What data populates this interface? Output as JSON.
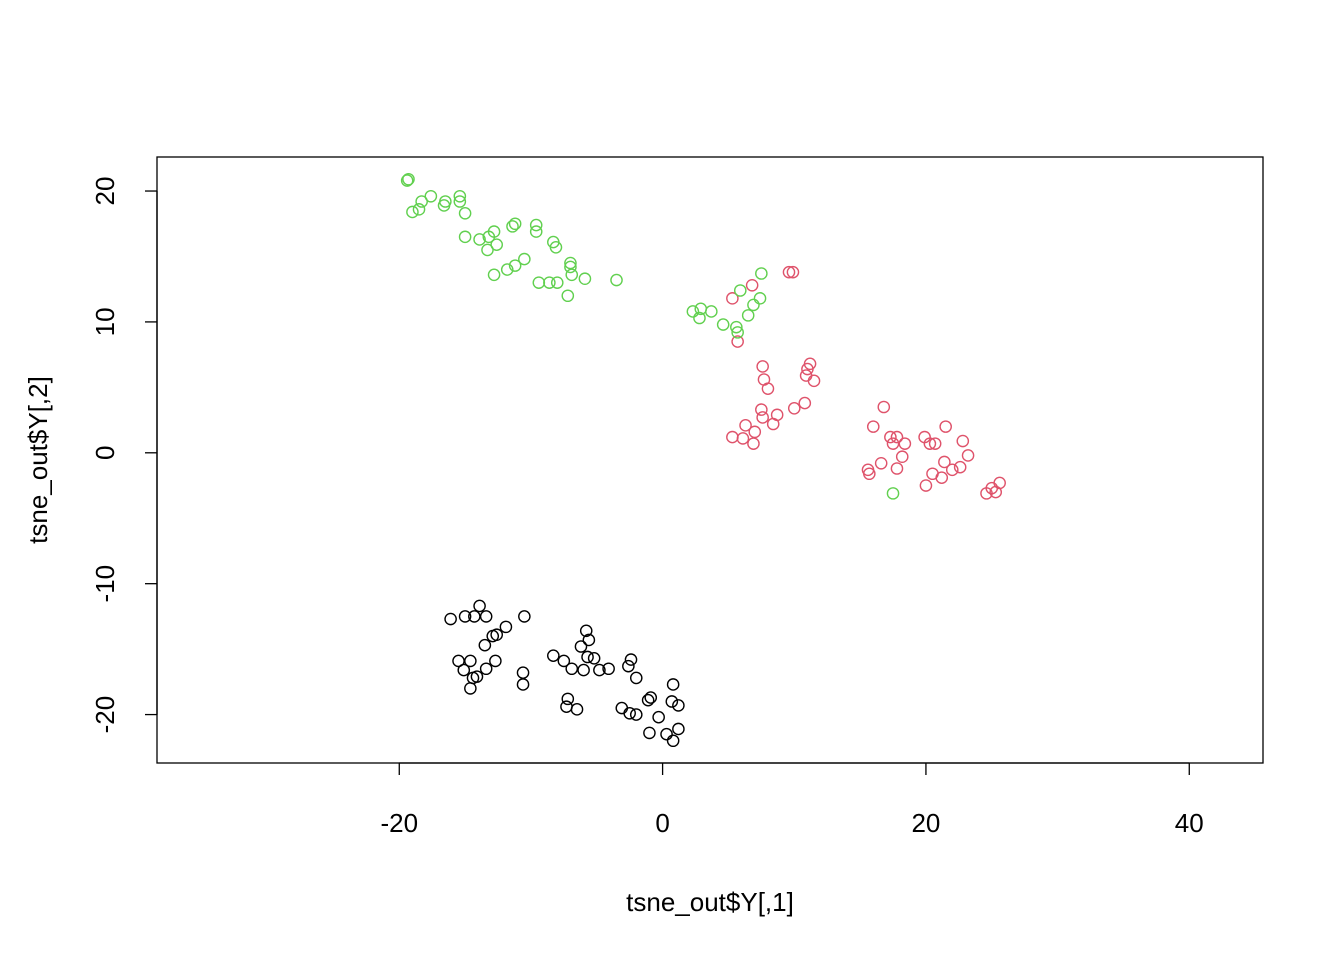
{
  "chart_data": {
    "type": "scatter",
    "title": "",
    "xlabel": "tsne_out$Y[,1]",
    "ylabel": "tsne_out$Y[,2]",
    "xlim": [
      -38.4,
      45.6
    ],
    "ylim": [
      -23.7,
      22.6
    ],
    "xticks": [
      -20,
      0,
      20,
      40
    ],
    "yticks": [
      -20,
      -10,
      0,
      10,
      20
    ],
    "grid": false,
    "legend": "none",
    "marker": "open-circle",
    "series": [
      {
        "color": "#000000",
        "points": [
          [
            -16.1,
            -12.7
          ],
          [
            -15.0,
            -12.5
          ],
          [
            -14.3,
            -12.5
          ],
          [
            -13.9,
            -11.7
          ],
          [
            -13.4,
            -12.5
          ],
          [
            -12.9,
            -14.0
          ],
          [
            -12.6,
            -13.9
          ],
          [
            -11.9,
            -13.3
          ],
          [
            -10.5,
            -12.5
          ],
          [
            -13.5,
            -14.7
          ],
          [
            -15.5,
            -15.9
          ],
          [
            -15.1,
            -16.6
          ],
          [
            -14.6,
            -15.9
          ],
          [
            -14.4,
            -17.2
          ],
          [
            -14.1,
            -17.1
          ],
          [
            -13.4,
            -16.5
          ],
          [
            -12.7,
            -15.9
          ],
          [
            -14.6,
            -18.0
          ],
          [
            -10.6,
            -16.8
          ],
          [
            -10.6,
            -17.7
          ],
          [
            -8.3,
            -15.5
          ],
          [
            -7.5,
            -15.9
          ],
          [
            -6.9,
            -16.5
          ],
          [
            -6.2,
            -14.8
          ],
          [
            -5.8,
            -13.6
          ],
          [
            -5.6,
            -14.3
          ],
          [
            -5.7,
            -15.6
          ],
          [
            -5.2,
            -15.7
          ],
          [
            -4.8,
            -16.6
          ],
          [
            -4.1,
            -16.5
          ],
          [
            -6.0,
            -16.6
          ],
          [
            -2.6,
            -16.3
          ],
          [
            -2.4,
            -15.8
          ],
          [
            -2.0,
            -17.2
          ],
          [
            -7.2,
            -18.8
          ],
          [
            -7.3,
            -19.4
          ],
          [
            -6.5,
            -19.6
          ],
          [
            -3.1,
            -19.5
          ],
          [
            -2.5,
            -19.9
          ],
          [
            -2.0,
            -20.0
          ],
          [
            -1.1,
            -18.9
          ],
          [
            -0.9,
            -18.7
          ],
          [
            0.8,
            -17.7
          ],
          [
            0.7,
            -19.0
          ],
          [
            1.2,
            -19.3
          ],
          [
            -0.3,
            -20.2
          ],
          [
            -1.0,
            -21.4
          ],
          [
            0.3,
            -21.5
          ],
          [
            0.8,
            -22.0
          ],
          [
            1.2,
            -21.1
          ]
        ]
      },
      {
        "color": "#DF536B",
        "points": [
          [
            5.3,
            11.8
          ],
          [
            6.8,
            12.8
          ],
          [
            9.6,
            13.8
          ],
          [
            9.9,
            13.8
          ],
          [
            5.7,
            8.5
          ],
          [
            7.6,
            6.6
          ],
          [
            7.7,
            5.6
          ],
          [
            8.0,
            4.9
          ],
          [
            11.0,
            6.4
          ],
          [
            11.2,
            6.8
          ],
          [
            10.9,
            5.9
          ],
          [
            11.5,
            5.5
          ],
          [
            7.5,
            3.3
          ],
          [
            7.6,
            2.7
          ],
          [
            8.7,
            2.9
          ],
          [
            10.0,
            3.4
          ],
          [
            10.8,
            3.8
          ],
          [
            8.4,
            2.2
          ],
          [
            6.3,
            2.1
          ],
          [
            7.0,
            1.6
          ],
          [
            5.3,
            1.2
          ],
          [
            6.1,
            1.1
          ],
          [
            6.9,
            0.7
          ],
          [
            16.0,
            2.0
          ],
          [
            16.8,
            3.5
          ],
          [
            17.3,
            1.2
          ],
          [
            17.5,
            0.7
          ],
          [
            17.8,
            1.2
          ],
          [
            18.4,
            0.7
          ],
          [
            18.2,
            -0.3
          ],
          [
            16.6,
            -0.8
          ],
          [
            15.6,
            -1.3
          ],
          [
            15.7,
            -1.6
          ],
          [
            17.8,
            -1.2
          ],
          [
            19.9,
            1.2
          ],
          [
            20.3,
            0.7
          ],
          [
            20.7,
            0.7
          ],
          [
            21.5,
            2.0
          ],
          [
            22.8,
            0.9
          ],
          [
            23.2,
            -0.2
          ],
          [
            21.4,
            -0.7
          ],
          [
            20.5,
            -1.6
          ],
          [
            21.2,
            -1.9
          ],
          [
            22.0,
            -1.3
          ],
          [
            22.6,
            -1.1
          ],
          [
            20.0,
            -2.5
          ],
          [
            24.6,
            -3.1
          ],
          [
            25.0,
            -2.7
          ],
          [
            25.3,
            -3.0
          ],
          [
            25.6,
            -2.3
          ]
        ]
      },
      {
        "color": "#61D04F",
        "points": [
          [
            -19.4,
            20.8
          ],
          [
            -19.3,
            20.9
          ],
          [
            -19.0,
            18.4
          ],
          [
            -18.5,
            18.6
          ],
          [
            -18.3,
            19.2
          ],
          [
            -17.6,
            19.6
          ],
          [
            -16.6,
            18.9
          ],
          [
            -16.5,
            19.2
          ],
          [
            -15.4,
            19.2
          ],
          [
            -15.4,
            19.6
          ],
          [
            -15.0,
            18.3
          ],
          [
            -15.0,
            16.5
          ],
          [
            -13.9,
            16.3
          ],
          [
            -13.2,
            16.5
          ],
          [
            -12.8,
            16.9
          ],
          [
            -13.3,
            15.5
          ],
          [
            -12.6,
            15.9
          ],
          [
            -11.4,
            17.3
          ],
          [
            -11.2,
            17.5
          ],
          [
            -9.6,
            17.4
          ],
          [
            -9.6,
            16.9
          ],
          [
            -8.3,
            16.1
          ],
          [
            -8.1,
            15.7
          ],
          [
            -10.5,
            14.8
          ],
          [
            -11.2,
            14.3
          ],
          [
            -11.8,
            14.0
          ],
          [
            -12.8,
            13.6
          ],
          [
            -9.4,
            13.0
          ],
          [
            -8.6,
            13.0
          ],
          [
            -8.0,
            13.0
          ],
          [
            -7.2,
            12.0
          ],
          [
            -7.0,
            14.5
          ],
          [
            -7.0,
            14.2
          ],
          [
            -6.9,
            13.6
          ],
          [
            -5.9,
            13.3
          ],
          [
            -3.5,
            13.2
          ],
          [
            2.3,
            10.8
          ],
          [
            2.8,
            10.3
          ],
          [
            2.9,
            11.0
          ],
          [
            3.7,
            10.8
          ],
          [
            4.6,
            9.8
          ],
          [
            5.6,
            9.6
          ],
          [
            5.7,
            9.2
          ],
          [
            6.5,
            10.5
          ],
          [
            5.9,
            12.4
          ],
          [
            6.9,
            11.3
          ],
          [
            7.4,
            11.8
          ],
          [
            7.5,
            13.7
          ],
          [
            17.5,
            -3.1
          ]
        ]
      }
    ]
  }
}
